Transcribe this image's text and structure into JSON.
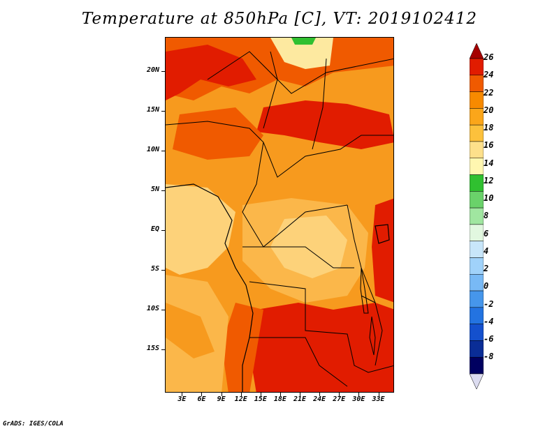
{
  "title": "Temperature at 850hPa [C], VT: 2019102412",
  "credit": "GrADS: IGES/COLA",
  "map": {
    "lat_labels": [
      "20N",
      "15N",
      "10N",
      "5N",
      "EQ",
      "5S",
      "10S",
      "15S"
    ],
    "lon_labels": [
      "3E",
      "6E",
      "9E",
      "12E",
      "15E",
      "18E",
      "21E",
      "24E",
      "27E",
      "30E",
      "33E"
    ],
    "lat_values": [
      20,
      15,
      10,
      5,
      0,
      -5,
      -10,
      -15
    ],
    "lon_values": [
      3,
      6,
      9,
      12,
      15,
      18,
      21,
      24,
      27,
      30,
      33
    ]
  },
  "colorbar": {
    "labels": [
      "26",
      "24",
      "22",
      "20",
      "18",
      "16",
      "14",
      "12",
      "10",
      "8",
      "6",
      "4",
      "2",
      "0",
      "-2",
      "-4",
      "-6",
      "-8"
    ],
    "colors": [
      "#a50000",
      "#e11c00",
      "#f05a00",
      "#f78a00",
      "#fba61a",
      "#fcc13c",
      "#fde08b",
      "#fff7b0",
      "#30c030",
      "#6ad26a",
      "#a0e6a0",
      "#e2f8e0",
      "#c8e6fa",
      "#a0d2fa",
      "#78b9f5",
      "#4696eb",
      "#2373e1",
      "#1450cd",
      "#0a2d96",
      "#000060",
      "#dcdcf0"
    ]
  },
  "legend_colors": {
    "deep_red": "#e11c00",
    "orange": "#f05a00",
    "light_orange": "#f79a1e",
    "pale_orange": "#fbb74a",
    "yellow": "#fdd27a",
    "pale_yellow": "#fde9a0",
    "green": "#30c030"
  }
}
